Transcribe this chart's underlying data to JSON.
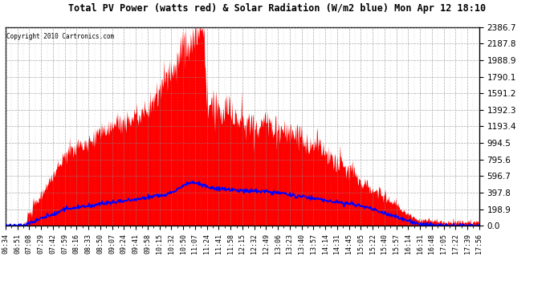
{
  "title": "Total PV Power (watts red) & Solar Radiation (W/m2 blue) Mon Apr 12 18:10",
  "copyright": "Copyright 2010 Cartronics.com",
  "background_color": "#ffffff",
  "plot_bg_color": "#ffffff",
  "grid_color": "#888888",
  "red_fill_color": "#ff0000",
  "blue_line_color": "#0000ff",
  "y_min": 0.0,
  "y_max": 2386.7,
  "y_ticks": [
    0.0,
    198.9,
    397.8,
    596.7,
    795.6,
    994.5,
    1193.4,
    1392.3,
    1591.2,
    1790.1,
    1988.9,
    2187.8,
    2386.7
  ],
  "x_labels": [
    "06:34",
    "06:51",
    "07:08",
    "07:29",
    "07:42",
    "07:59",
    "08:16",
    "08:33",
    "08:50",
    "09:07",
    "09:24",
    "09:41",
    "09:58",
    "10:15",
    "10:32",
    "10:50",
    "11:07",
    "11:24",
    "11:41",
    "11:58",
    "12:15",
    "12:32",
    "12:49",
    "13:06",
    "13:23",
    "13:40",
    "13:57",
    "14:14",
    "14:31",
    "14:45",
    "15:05",
    "15:22",
    "15:40",
    "15:57",
    "16:14",
    "16:31",
    "16:48",
    "17:05",
    "17:22",
    "17:39",
    "17:56"
  ]
}
